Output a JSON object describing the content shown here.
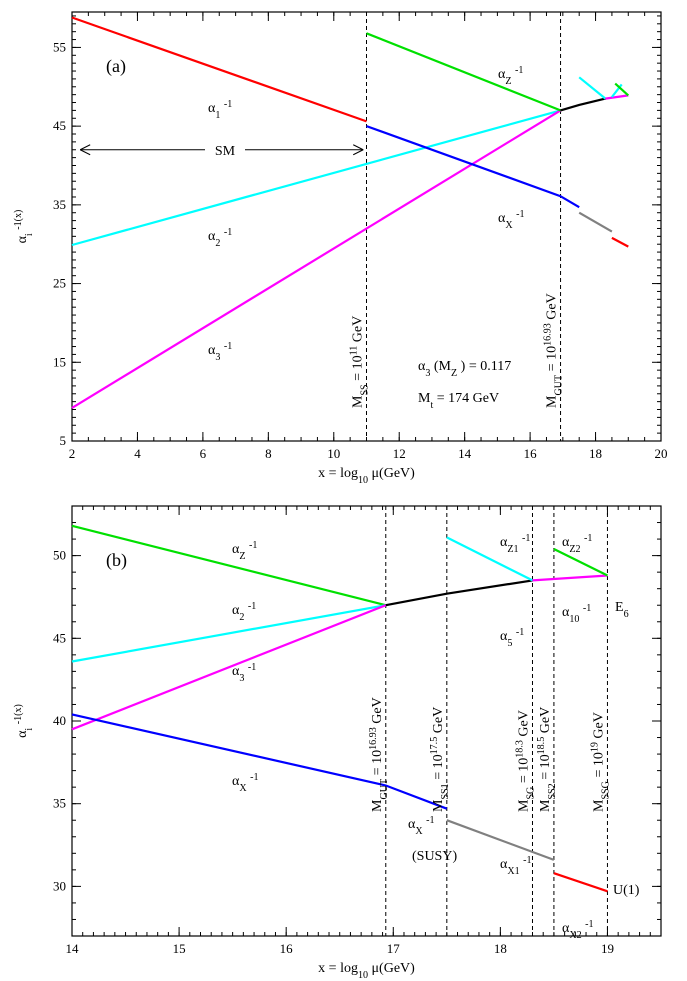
{
  "chart_data": [
    {
      "type": "line",
      "panel_label": "(a)",
      "xlabel": "x = log₁₀ μ(GeV)",
      "ylabel": "αᵢ⁻¹(x)",
      "xlim": [
        2,
        20
      ],
      "ylim": [
        5,
        59.5
      ],
      "xticks": [
        2,
        4,
        6,
        8,
        10,
        12,
        14,
        16,
        18,
        20
      ],
      "yticks": [
        5,
        15,
        25,
        35,
        45,
        55
      ],
      "series": [
        {
          "name": "α₁⁻¹",
          "color": "#ff0000",
          "points": [
            [
              2.0,
              58.8
            ],
            [
              11.0,
              45.6
            ]
          ]
        },
        {
          "name": "α₂⁻¹",
          "color": "#00ffff",
          "points": [
            [
              2.0,
              29.9
            ],
            [
              16.93,
              47.0
            ]
          ]
        },
        {
          "name": "α₃⁻¹",
          "color": "#ff00ff",
          "points": [
            [
              2.0,
              9.2
            ],
            [
              16.93,
              47.0
            ]
          ]
        },
        {
          "name": "α_Z⁻¹",
          "color": "#00e000",
          "points": [
            [
              11.0,
              56.8
            ],
            [
              16.93,
              47.0
            ]
          ]
        },
        {
          "name": "α_X⁻¹",
          "color": "#0000ff",
          "points": [
            [
              11.0,
              45.0
            ],
            [
              16.93,
              36.1
            ],
            [
              17.5,
              34.7
            ]
          ]
        },
        {
          "name": "",
          "color": "#000000",
          "points": [
            [
              16.93,
              47.0
            ],
            [
              17.5,
              47.7
            ],
            [
              18.3,
              48.5
            ]
          ]
        },
        {
          "name": "",
          "color": "#00ffff",
          "points": [
            [
              17.5,
              51.2
            ],
            [
              18.3,
              48.5
            ]
          ]
        },
        {
          "name": "",
          "color": "#ff00ff",
          "points": [
            [
              18.3,
              48.5
            ],
            [
              19.0,
              48.9
            ]
          ]
        },
        {
          "name": "",
          "color": "#00ffff",
          "points": [
            [
              18.5,
              48.7
            ],
            [
              18.8,
              50.3
            ]
          ]
        },
        {
          "name": "",
          "color": "#00e000",
          "points": [
            [
              18.6,
              50.4
            ],
            [
              19.0,
              48.9
            ]
          ]
        },
        {
          "name": "",
          "color": "#808080",
          "points": [
            [
              17.5,
              34.0
            ],
            [
              18.5,
              31.6
            ]
          ]
        },
        {
          "name": "",
          "color": "#ff0000",
          "points": [
            [
              18.5,
              30.8
            ],
            [
              19.0,
              29.7
            ]
          ]
        }
      ],
      "vlines": [
        {
          "x": 11.0,
          "label": "M_SS = 10^11 GeV"
        },
        {
          "x": 16.93,
          "label": "M_GUT = 10^16.93 GeV"
        }
      ],
      "annotations": {
        "sm": "SM",
        "alpha3": "α₃(M_Z) = 0.117",
        "mt": "M_t = 174 GeV"
      }
    },
    {
      "type": "line",
      "panel_label": "(b)",
      "xlabel": "x = log₁₀ μ(GeV)",
      "ylabel": "αᵢ⁻¹(x)",
      "xlim": [
        14,
        19.5
      ],
      "ylim": [
        27,
        53
      ],
      "xticks": [
        14,
        15,
        16,
        17,
        18,
        19
      ],
      "yticks": [
        30,
        35,
        40,
        45,
        50
      ],
      "series": [
        {
          "name": "α_Z⁻¹",
          "color": "#00e000",
          "points": [
            [
              14.0,
              51.8
            ],
            [
              16.93,
              47.0
            ]
          ]
        },
        {
          "name": "α₂⁻¹",
          "color": "#00ffff",
          "points": [
            [
              14.0,
              43.6
            ],
            [
              16.93,
              47.0
            ]
          ]
        },
        {
          "name": "α₃⁻¹",
          "color": "#ff00ff",
          "points": [
            [
              14.0,
              39.5
            ],
            [
              16.93,
              47.0
            ]
          ]
        },
        {
          "name": "α_X⁻¹",
          "color": "#0000ff",
          "points": [
            [
              14.0,
              40.4
            ],
            [
              16.93,
              36.1
            ],
            [
              17.5,
              34.7
            ]
          ]
        },
        {
          "name": "α₅⁻¹",
          "color": "#000000",
          "points": [
            [
              16.93,
              47.0
            ],
            [
              17.5,
              47.7
            ],
            [
              18.3,
              48.5
            ]
          ]
        },
        {
          "name": "α_Z1⁻¹",
          "color": "#00ffff",
          "points": [
            [
              17.5,
              51.1
            ],
            [
              18.3,
              48.5
            ]
          ]
        },
        {
          "name": "α₁₀⁻¹",
          "color": "#ff00ff",
          "points": [
            [
              18.3,
              48.5
            ],
            [
              19.0,
              48.8
            ]
          ]
        },
        {
          "name": "α_Z2⁻¹",
          "color": "#00e000",
          "points": [
            [
              18.5,
              50.4
            ],
            [
              19.0,
              48.8
            ]
          ]
        },
        {
          "name": "α_X1⁻¹",
          "color": "#808080",
          "points": [
            [
              17.5,
              34.0
            ],
            [
              18.5,
              31.6
            ]
          ]
        },
        {
          "name": "α_X2⁻¹",
          "color": "#ff0000",
          "points": [
            [
              18.5,
              30.8
            ],
            [
              19.0,
              29.7
            ]
          ]
        }
      ],
      "vlines": [
        {
          "x": 16.93,
          "label": "M_GUT = 10^16.93 GeV"
        },
        {
          "x": 17.5,
          "label": "M_SS1 = 10^17.5 GeV"
        },
        {
          "x": 18.3,
          "label": "M_SG = 10^18.3 GeV"
        },
        {
          "x": 18.5,
          "label": "M_SS2 = 10^18.5 GeV"
        },
        {
          "x": 19.0,
          "label": "M_SSG = 10^19 GeV"
        }
      ],
      "annotations": {
        "e6": "E₆",
        "u1": "U(1)",
        "susy": "(SUSY)"
      }
    }
  ]
}
